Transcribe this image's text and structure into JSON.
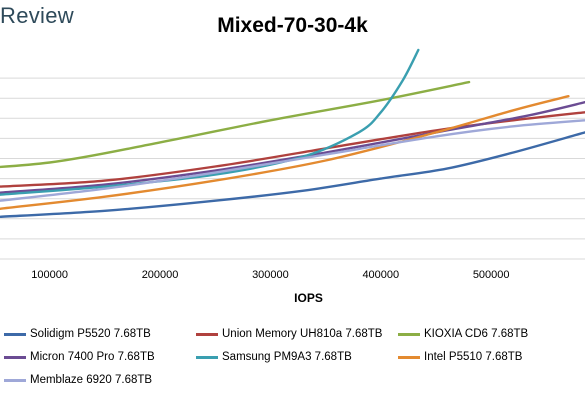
{
  "brand": "Review",
  "chart_data": {
    "type": "line",
    "title": "Mixed-70-30-4k",
    "xlabel": "IOPS",
    "ylabel": "",
    "xlim": [
      55000,
      585000
    ],
    "ylim": [
      0,
      10
    ],
    "x_ticks": [
      100000,
      200000,
      300000,
      400000,
      500000
    ],
    "x_tick_labels": [
      "100000",
      "200000",
      "300000",
      "400000",
      "500000"
    ],
    "y_gridlines": [
      0,
      1,
      2,
      3,
      4,
      5,
      6,
      7,
      8,
      9
    ],
    "grid": true,
    "legend_position": "bottom",
    "series": [
      {
        "name": "Solidigm P5520 7.68TB",
        "color": "#3d6aa8",
        "x": [
          55000,
          150000,
          250000,
          330000,
          400000,
          460000,
          520000,
          585000
        ],
        "y": [
          2.1,
          2.4,
          2.9,
          3.4,
          4.0,
          4.5,
          5.3,
          6.3
        ]
      },
      {
        "name": "Union Memory UH810a 7.68TB",
        "color": "#b0413e",
        "x": [
          55000,
          150000,
          250000,
          350000,
          450000,
          520000,
          585000
        ],
        "y": [
          3.6,
          3.9,
          4.6,
          5.5,
          6.4,
          6.9,
          7.3
        ]
      },
      {
        "name": "KIOXIA CD6 7.68TB",
        "color": "#8cae45",
        "x": [
          0,
          100000,
          200000,
          300000,
          400000,
          480000
        ],
        "y": [
          4.4,
          4.8,
          5.8,
          6.9,
          7.9,
          8.8
        ]
      },
      {
        "name": "Micron 7400 Pro 7.68TB",
        "color": "#6b4c93",
        "x": [
          55000,
          150000,
          250000,
          350000,
          450000,
          530000,
          585000
        ],
        "y": [
          3.3,
          3.7,
          4.4,
          5.3,
          6.3,
          7.1,
          7.8
        ]
      },
      {
        "name": "Samsung PM9A3 7.68TB",
        "color": "#3a9fb0",
        "x": [
          55000,
          150000,
          250000,
          330000,
          380000,
          400000,
          420000,
          434000
        ],
        "y": [
          3.2,
          3.6,
          4.2,
          5.1,
          6.3,
          7.3,
          8.9,
          10.4
        ]
      },
      {
        "name": "Intel P5510 7.68TB",
        "color": "#e38a30",
        "x": [
          55000,
          150000,
          250000,
          350000,
          450000,
          520000,
          570000
        ],
        "y": [
          2.5,
          3.1,
          3.9,
          4.9,
          6.3,
          7.4,
          8.1
        ]
      },
      {
        "name": "Memblaze 6920 7.68TB",
        "color": "#9fa8d8",
        "x": [
          55000,
          150000,
          250000,
          350000,
          450000,
          520000,
          585000
        ],
        "y": [
          2.9,
          3.5,
          4.3,
          5.2,
          6.1,
          6.6,
          6.9
        ]
      }
    ]
  }
}
